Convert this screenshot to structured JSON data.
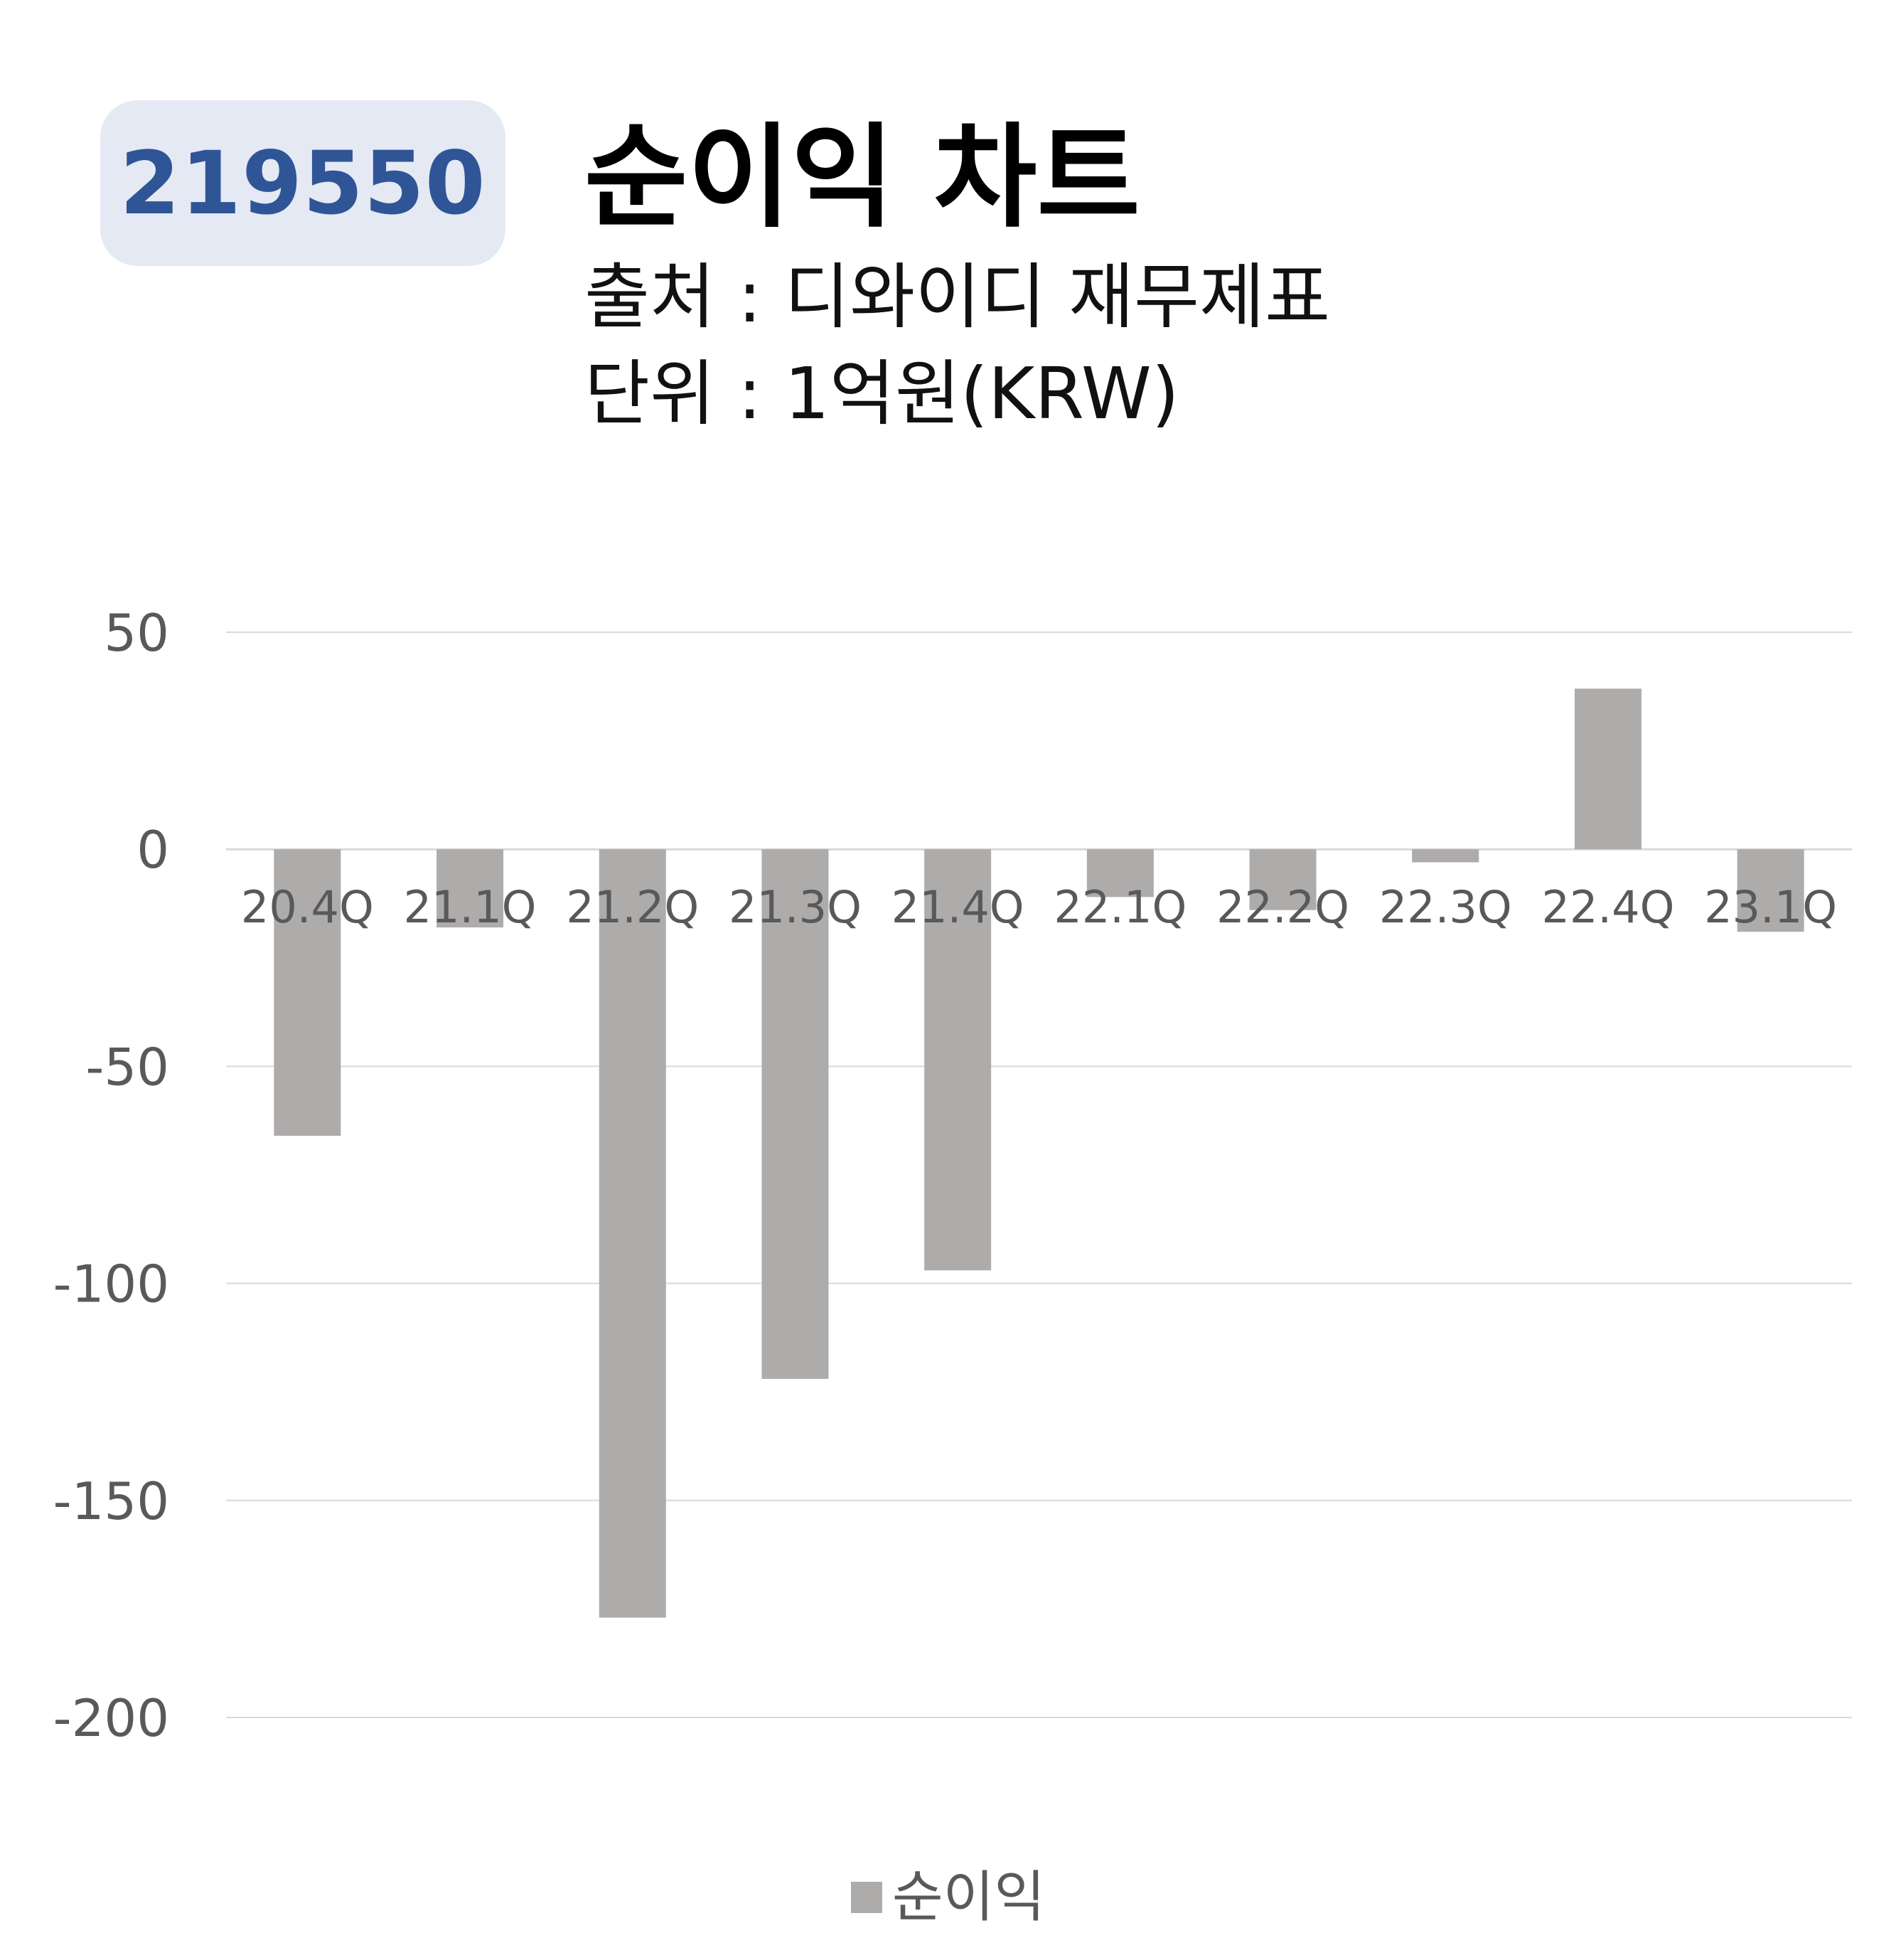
{
  "stock_code": "219550",
  "colors": {
    "badge_background": "#e4e9f4",
    "badge_text": "#2f5597",
    "bar": "#aeabab",
    "grid": "#d9d9d9",
    "axis_text": "#595959"
  },
  "chart_data": {
    "type": "bar",
    "title": "순이익 차트",
    "subtitles": [
      "출처 : 디와이디 재무제표",
      "단위 : 1억원(KRW)"
    ],
    "categories": [
      "20.4Q",
      "21.1Q",
      "21.2Q",
      "21.3Q",
      "21.4Q",
      "22.1Q",
      "22.2Q",
      "22.3Q",
      "22.4Q",
      "23.1Q"
    ],
    "series": [
      {
        "name": "순이익",
        "values": [
          -66,
          -18,
          -177,
          -122,
          -97,
          -11,
          -14,
          -3,
          37,
          -19
        ]
      }
    ],
    "ylim": [
      -200,
      50
    ],
    "yticks": [
      50,
      0,
      -50,
      -100,
      -150,
      -200
    ],
    "grid": true,
    "legend_position": "bottom"
  }
}
